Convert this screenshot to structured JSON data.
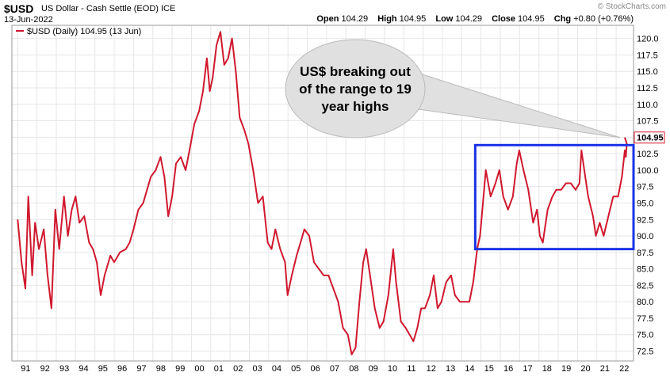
{
  "header": {
    "symbol": "$USD",
    "description": "US Dollar - Cash Settle (EOD)",
    "exchange": "ICE",
    "date": "13-Jun-2022",
    "copyright": "© StockCharts.com",
    "open_label": "Open",
    "open": "104.29",
    "high_label": "High",
    "high": "104.95",
    "low_label": "Low",
    "low": "104.29",
    "close_label": "Close",
    "close": "104.95",
    "chg_label": "Chg",
    "chg": "+0.80 (+0.76%)"
  },
  "legend": {
    "label": "$USD (Daily) 104.95 (13 Jun)"
  },
  "annotation": {
    "lines": [
      "US$ breaking out",
      "of the range to 19",
      "year highs"
    ]
  },
  "colors": {
    "series": "#d0182e",
    "box": "#1a33e6",
    "grid": "#e6e6e6"
  },
  "chart_data": {
    "type": "line",
    "series": [
      {
        "name": "$USD (Daily)",
        "points": [
          [
            1991.0,
            92.5
          ],
          [
            1991.2,
            86
          ],
          [
            1991.4,
            82
          ],
          [
            1991.55,
            96
          ],
          [
            1991.75,
            84
          ],
          [
            1991.9,
            92
          ],
          [
            1992.1,
            88
          ],
          [
            1992.35,
            91
          ],
          [
            1992.55,
            84
          ],
          [
            1992.75,
            79
          ],
          [
            1992.95,
            94
          ],
          [
            1993.15,
            88
          ],
          [
            1993.4,
            96
          ],
          [
            1993.6,
            90
          ],
          [
            1993.8,
            94
          ],
          [
            1994.0,
            96
          ],
          [
            1994.2,
            92
          ],
          [
            1994.45,
            93
          ],
          [
            1994.7,
            89
          ],
          [
            1994.9,
            88
          ],
          [
            1995.1,
            86
          ],
          [
            1995.3,
            81
          ],
          [
            1995.5,
            84
          ],
          [
            1995.8,
            87
          ],
          [
            1996.0,
            86
          ],
          [
            1996.3,
            87.5
          ],
          [
            1996.6,
            88
          ],
          [
            1996.8,
            89
          ],
          [
            1997.0,
            91
          ],
          [
            1997.25,
            94
          ],
          [
            1997.5,
            95
          ],
          [
            1997.7,
            97
          ],
          [
            1997.9,
            99
          ],
          [
            1998.15,
            100
          ],
          [
            1998.4,
            102
          ],
          [
            1998.6,
            99
          ],
          [
            1998.8,
            93
          ],
          [
            1999.0,
            96
          ],
          [
            1999.2,
            101
          ],
          [
            1999.45,
            102
          ],
          [
            1999.7,
            100
          ],
          [
            1999.9,
            103
          ],
          [
            2000.15,
            107
          ],
          [
            2000.4,
            109
          ],
          [
            2000.6,
            112
          ],
          [
            2000.8,
            117
          ],
          [
            2000.95,
            112
          ],
          [
            2001.1,
            114
          ],
          [
            2001.3,
            119
          ],
          [
            2001.5,
            121
          ],
          [
            2001.7,
            116
          ],
          [
            2001.9,
            117
          ],
          [
            2002.1,
            120
          ],
          [
            2002.3,
            115
          ],
          [
            2002.5,
            108
          ],
          [
            2002.75,
            106
          ],
          [
            2002.95,
            104
          ],
          [
            2003.2,
            100
          ],
          [
            2003.45,
            95
          ],
          [
            2003.7,
            96
          ],
          [
            2003.95,
            89
          ],
          [
            2004.15,
            88
          ],
          [
            2004.35,
            91
          ],
          [
            2004.6,
            88
          ],
          [
            2004.85,
            86
          ],
          [
            2004.98,
            81
          ],
          [
            2005.2,
            84
          ],
          [
            2005.45,
            87
          ],
          [
            2005.65,
            89
          ],
          [
            2005.85,
            91
          ],
          [
            2006.1,
            90
          ],
          [
            2006.35,
            86
          ],
          [
            2006.6,
            85
          ],
          [
            2006.85,
            84
          ],
          [
            2007.1,
            84
          ],
          [
            2007.35,
            82
          ],
          [
            2007.6,
            80
          ],
          [
            2007.85,
            76
          ],
          [
            2008.1,
            75
          ],
          [
            2008.3,
            72
          ],
          [
            2008.5,
            73
          ],
          [
            2008.7,
            80
          ],
          [
            2008.9,
            86
          ],
          [
            2009.05,
            88
          ],
          [
            2009.25,
            84
          ],
          [
            2009.5,
            79
          ],
          [
            2009.75,
            76
          ],
          [
            2009.95,
            77
          ],
          [
            2010.2,
            81
          ],
          [
            2010.45,
            88
          ],
          [
            2010.6,
            83
          ],
          [
            2010.85,
            77
          ],
          [
            2011.1,
            76
          ],
          [
            2011.3,
            75
          ],
          [
            2011.5,
            74
          ],
          [
            2011.7,
            76
          ],
          [
            2011.9,
            79
          ],
          [
            2012.1,
            79
          ],
          [
            2012.35,
            81
          ],
          [
            2012.55,
            84
          ],
          [
            2012.75,
            79
          ],
          [
            2012.95,
            80
          ],
          [
            2013.2,
            83
          ],
          [
            2013.45,
            84
          ],
          [
            2013.65,
            81
          ],
          [
            2013.9,
            80
          ],
          [
            2014.15,
            80
          ],
          [
            2014.4,
            80
          ],
          [
            2014.6,
            83
          ],
          [
            2014.8,
            88
          ],
          [
            2014.95,
            90
          ],
          [
            2015.1,
            95
          ],
          [
            2015.25,
            100
          ],
          [
            2015.5,
            96
          ],
          [
            2015.75,
            98
          ],
          [
            2015.95,
            100
          ],
          [
            2016.15,
            96
          ],
          [
            2016.4,
            94
          ],
          [
            2016.65,
            96
          ],
          [
            2016.85,
            101
          ],
          [
            2016.98,
            103
          ],
          [
            2017.2,
            100
          ],
          [
            2017.45,
            97
          ],
          [
            2017.7,
            92
          ],
          [
            2017.9,
            94
          ],
          [
            2018.05,
            90
          ],
          [
            2018.2,
            89
          ],
          [
            2018.45,
            94
          ],
          [
            2018.7,
            96
          ],
          [
            2018.9,
            97
          ],
          [
            2019.15,
            97
          ],
          [
            2019.4,
            98
          ],
          [
            2019.65,
            98
          ],
          [
            2019.9,
            97
          ],
          [
            2020.1,
            98
          ],
          [
            2020.2,
            103
          ],
          [
            2020.35,
            100
          ],
          [
            2020.55,
            96
          ],
          [
            2020.8,
            93
          ],
          [
            2020.95,
            90
          ],
          [
            2021.15,
            92
          ],
          [
            2021.35,
            90
          ],
          [
            2021.6,
            93
          ],
          [
            2021.85,
            96
          ],
          [
            2022.1,
            96
          ],
          [
            2022.3,
            99
          ],
          [
            2022.45,
            103
          ],
          [
            2022.5,
            102
          ],
          [
            2022.55,
            104
          ],
          [
            2022.45,
            104.95
          ]
        ]
      }
    ],
    "x_ticks": [
      "91",
      "92",
      "93",
      "94",
      "95",
      "96",
      "97",
      "98",
      "99",
      "00",
      "01",
      "02",
      "03",
      "04",
      "05",
      "06",
      "07",
      "08",
      "09",
      "10",
      "11",
      "12",
      "13",
      "14",
      "15",
      "16",
      "17",
      "18",
      "19",
      "20",
      "21",
      "22"
    ],
    "y_ticks": [
      "72.5",
      "75.0",
      "77.5",
      "80.0",
      "82.5",
      "85.0",
      "87.5",
      "90.0",
      "92.5",
      "95.0",
      "97.5",
      "100.0",
      "102.5",
      "105.0",
      "107.5",
      "110.0",
      "112.5",
      "115.0",
      "117.5",
      "120.0"
    ],
    "last_value_label": "104.95",
    "xlim": [
      1990.7,
      2022.9
    ],
    "ylim": [
      71.0,
      122.0
    ],
    "range_box": {
      "x0": 2014.7,
      "x1": 2022.9,
      "y0": 88.0,
      "y1": 103.8
    }
  }
}
